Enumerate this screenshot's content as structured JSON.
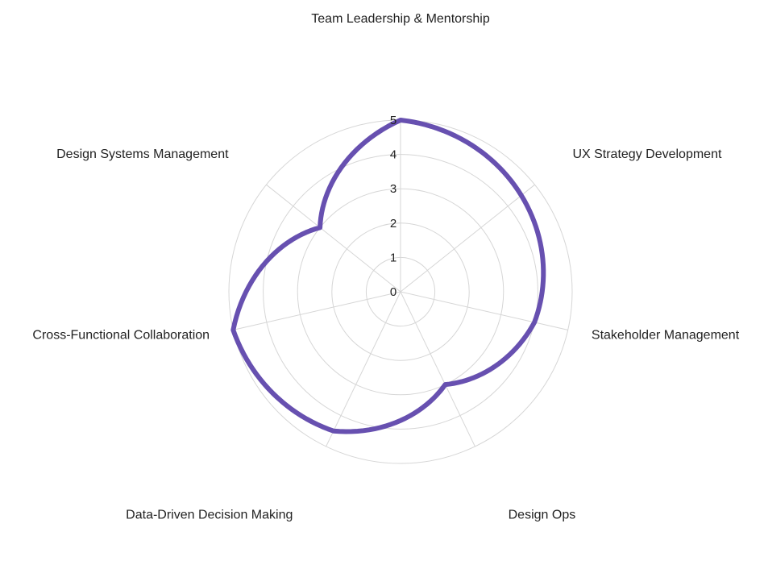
{
  "chart_data": {
    "type": "radar",
    "categories": [
      "Team Leadership & Mentorship",
      "UX Strategy Development",
      "Stakeholder Management",
      "Design Ops",
      "Data-Driven Decision Making",
      "Cross-Functional Collaboration",
      "Design Systems Management"
    ],
    "series": [
      {
        "values": [
          5,
          4.5,
          4,
          3,
          4.5,
          5,
          3
        ],
        "color": "#6750b0"
      }
    ],
    "rlim": [
      0,
      5
    ],
    "ticks": [
      "0",
      "1",
      "2",
      "3",
      "4",
      "5"
    ],
    "grid": true,
    "legend": "none",
    "colors": {
      "grid": "#d6d6d6",
      "text": "#222222"
    }
  }
}
